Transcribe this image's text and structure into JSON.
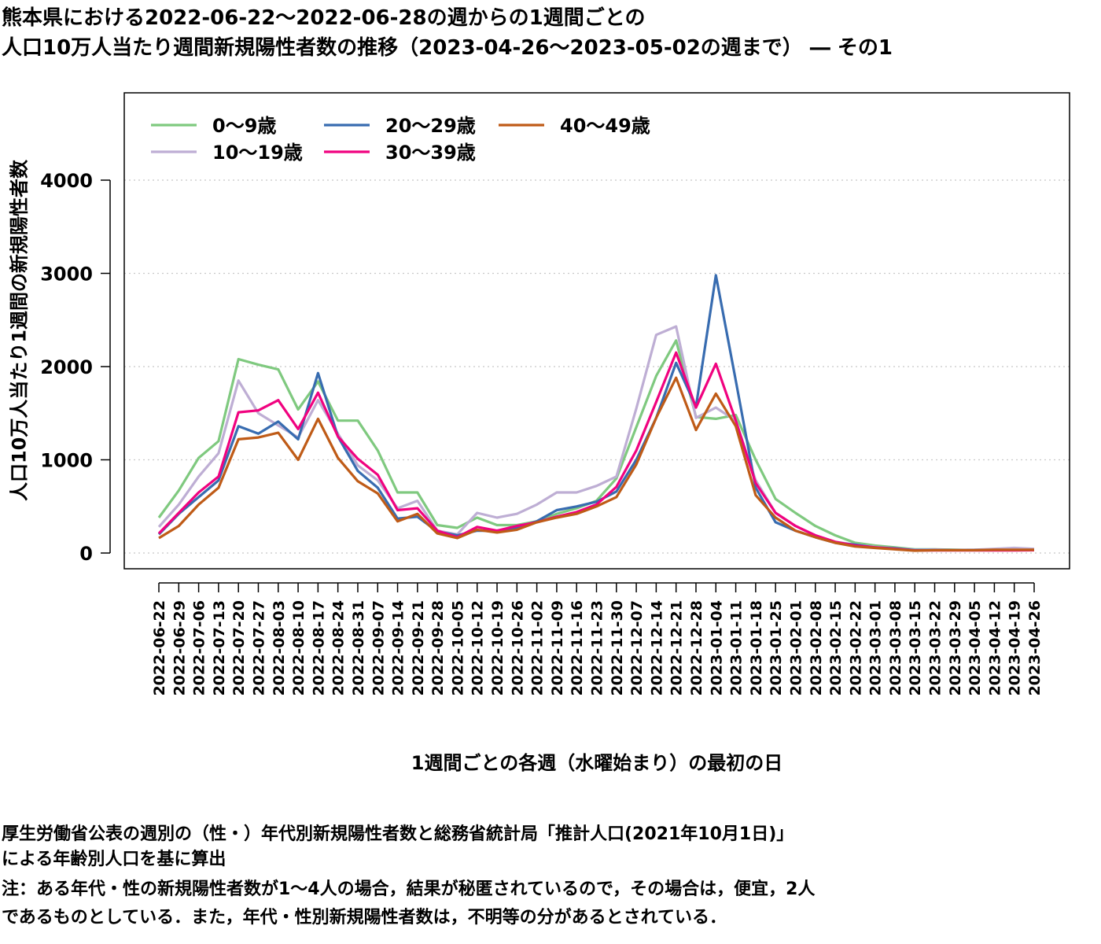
{
  "title_line1": "熊本県における2022-06-22～2022-06-28の週からの1週間ごとの",
  "title_line2": "人口10万人当たり週間新規陽性者数の推移（2023-04-26～2023-05-02の週まで） ― その1",
  "notes": [
    "厚生労働省公表の週別の（性・）年代別新規陽性者数と総務省統計局「推計人口(2021年10月1日)」",
    "による年齢別人口を基に算出",
    "注：ある年代・性の新規陽性者数が1～4人の場合，結果が秘匿されているので，その場合は，便宜，2人",
    "であるものとしている．また，年代・性別新規陽性者数は，不明等の分があるとされている．"
  ],
  "chart_data": {
    "type": "line",
    "xlabel": "1週間ごとの各週（水曜始まり）の最初の日",
    "ylabel": "人口10万人当たり1週間の新規陽性者数",
    "ylim": [
      -200,
      4960
    ],
    "yticks": [
      0,
      1000,
      2000,
      3000,
      4000
    ],
    "grid": "horizontal dotted",
    "legend_position": "top-left",
    "categories": [
      "2022-06-22",
      "2022-06-29",
      "2022-07-06",
      "2022-07-13",
      "2022-07-20",
      "2022-07-27",
      "2022-08-03",
      "2022-08-10",
      "2022-08-17",
      "2022-08-24",
      "2022-08-31",
      "2022-09-07",
      "2022-09-14",
      "2022-09-21",
      "2022-09-28",
      "2022-10-05",
      "2022-10-12",
      "2022-10-19",
      "2022-10-26",
      "2022-11-02",
      "2022-11-09",
      "2022-11-16",
      "2022-11-23",
      "2022-11-30",
      "2022-12-07",
      "2022-12-14",
      "2022-12-21",
      "2022-12-28",
      "2023-01-04",
      "2023-01-11",
      "2023-01-18",
      "2023-01-25",
      "2023-02-01",
      "2023-02-08",
      "2023-02-15",
      "2023-02-22",
      "2023-03-01",
      "2023-03-08",
      "2023-03-15",
      "2023-03-22",
      "2023-03-29",
      "2023-04-05",
      "2023-04-12",
      "2023-04-19",
      "2023-04-26"
    ],
    "series": [
      {
        "name": "0～9歳",
        "color": "#7fc97f",
        "values": [
          380,
          670,
          1020,
          1200,
          2080,
          2020,
          1970,
          1540,
          1840,
          1420,
          1420,
          1100,
          650,
          650,
          300,
          270,
          380,
          300,
          300,
          340,
          420,
          480,
          560,
          800,
          1350,
          1900,
          2280,
          1460,
          1440,
          1480,
          1000,
          580,
          430,
          290,
          190,
          110,
          80,
          60,
          40,
          40,
          35,
          30,
          30,
          35,
          40
        ]
      },
      {
        "name": "10～19歳",
        "color": "#beaed4",
        "values": [
          280,
          520,
          820,
          1070,
          1850,
          1500,
          1370,
          1240,
          1640,
          1280,
          940,
          780,
          480,
          560,
          240,
          200,
          430,
          380,
          420,
          520,
          650,
          650,
          720,
          820,
          1550,
          2340,
          2430,
          1450,
          1560,
          1420,
          780,
          430,
          290,
          190,
          120,
          90,
          65,
          50,
          35,
          38,
          32,
          35,
          45,
          55,
          45
        ]
      },
      {
        "name": "20～29歳",
        "color": "#386cb0",
        "values": [
          200,
          420,
          600,
          780,
          1360,
          1280,
          1410,
          1220,
          1930,
          1250,
          880,
          700,
          370,
          390,
          230,
          190,
          240,
          240,
          270,
          340,
          460,
          500,
          550,
          660,
          1000,
          1450,
          2040,
          1570,
          2980,
          1850,
          700,
          330,
          240,
          170,
          110,
          90,
          60,
          50,
          30,
          32,
          30,
          32,
          30,
          30,
          30
        ]
      },
      {
        "name": "30～39歳",
        "color": "#f0027f",
        "values": [
          210,
          430,
          650,
          820,
          1510,
          1530,
          1640,
          1330,
          1720,
          1250,
          1010,
          840,
          460,
          480,
          240,
          170,
          280,
          240,
          290,
          330,
          390,
          440,
          520,
          710,
          1100,
          1620,
          2150,
          1560,
          2030,
          1420,
          750,
          430,
          290,
          190,
          120,
          80,
          60,
          45,
          28,
          28,
          28,
          28,
          28,
          28,
          30
        ]
      },
      {
        "name": "40～49歳",
        "color": "#bf5b17",
        "values": [
          160,
          290,
          520,
          700,
          1220,
          1240,
          1290,
          1000,
          1440,
          1020,
          770,
          640,
          340,
          420,
          210,
          160,
          250,
          220,
          250,
          330,
          380,
          420,
          500,
          600,
          950,
          1450,
          1880,
          1320,
          1710,
          1360,
          620,
          380,
          240,
          170,
          110,
          70,
          55,
          40,
          25,
          30,
          30,
          30,
          35,
          35,
          35
        ]
      }
    ]
  }
}
